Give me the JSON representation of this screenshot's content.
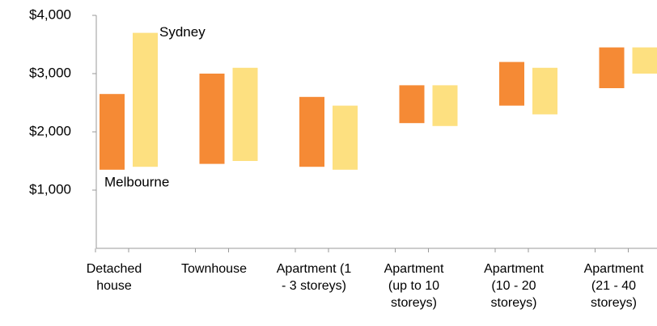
{
  "chart_data": {
    "type": "floating-bar",
    "categories": [
      "Detached house",
      "Townhouse",
      "Apartment (1 - 3 storeys)",
      "Apartment (up to 10 storeys)",
      "Apartment (10 - 20 storeys)",
      "Apartment (21 - 40 storeys)"
    ],
    "series": [
      {
        "name": "Melbourne",
        "color": "#f58a35",
        "low": [
          1350,
          1450,
          1400,
          2150,
          2450,
          2750
        ],
        "high": [
          2650,
          3000,
          2600,
          2800,
          3200,
          3450
        ]
      },
      {
        "name": "Sydney",
        "color": "#fde080",
        "low": [
          1400,
          1500,
          1350,
          2100,
          2300,
          3000
        ],
        "high": [
          3700,
          3100,
          2450,
          2800,
          3100,
          3450
        ]
      }
    ],
    "ylim": [
      0,
      4000
    ],
    "yticks": [
      {
        "value": 1000,
        "label": "$1,000"
      },
      {
        "value": 2000,
        "label": "$2,000"
      },
      {
        "value": 3000,
        "label": "$3,000"
      },
      {
        "value": 4000,
        "label": "$4,000"
      }
    ]
  }
}
